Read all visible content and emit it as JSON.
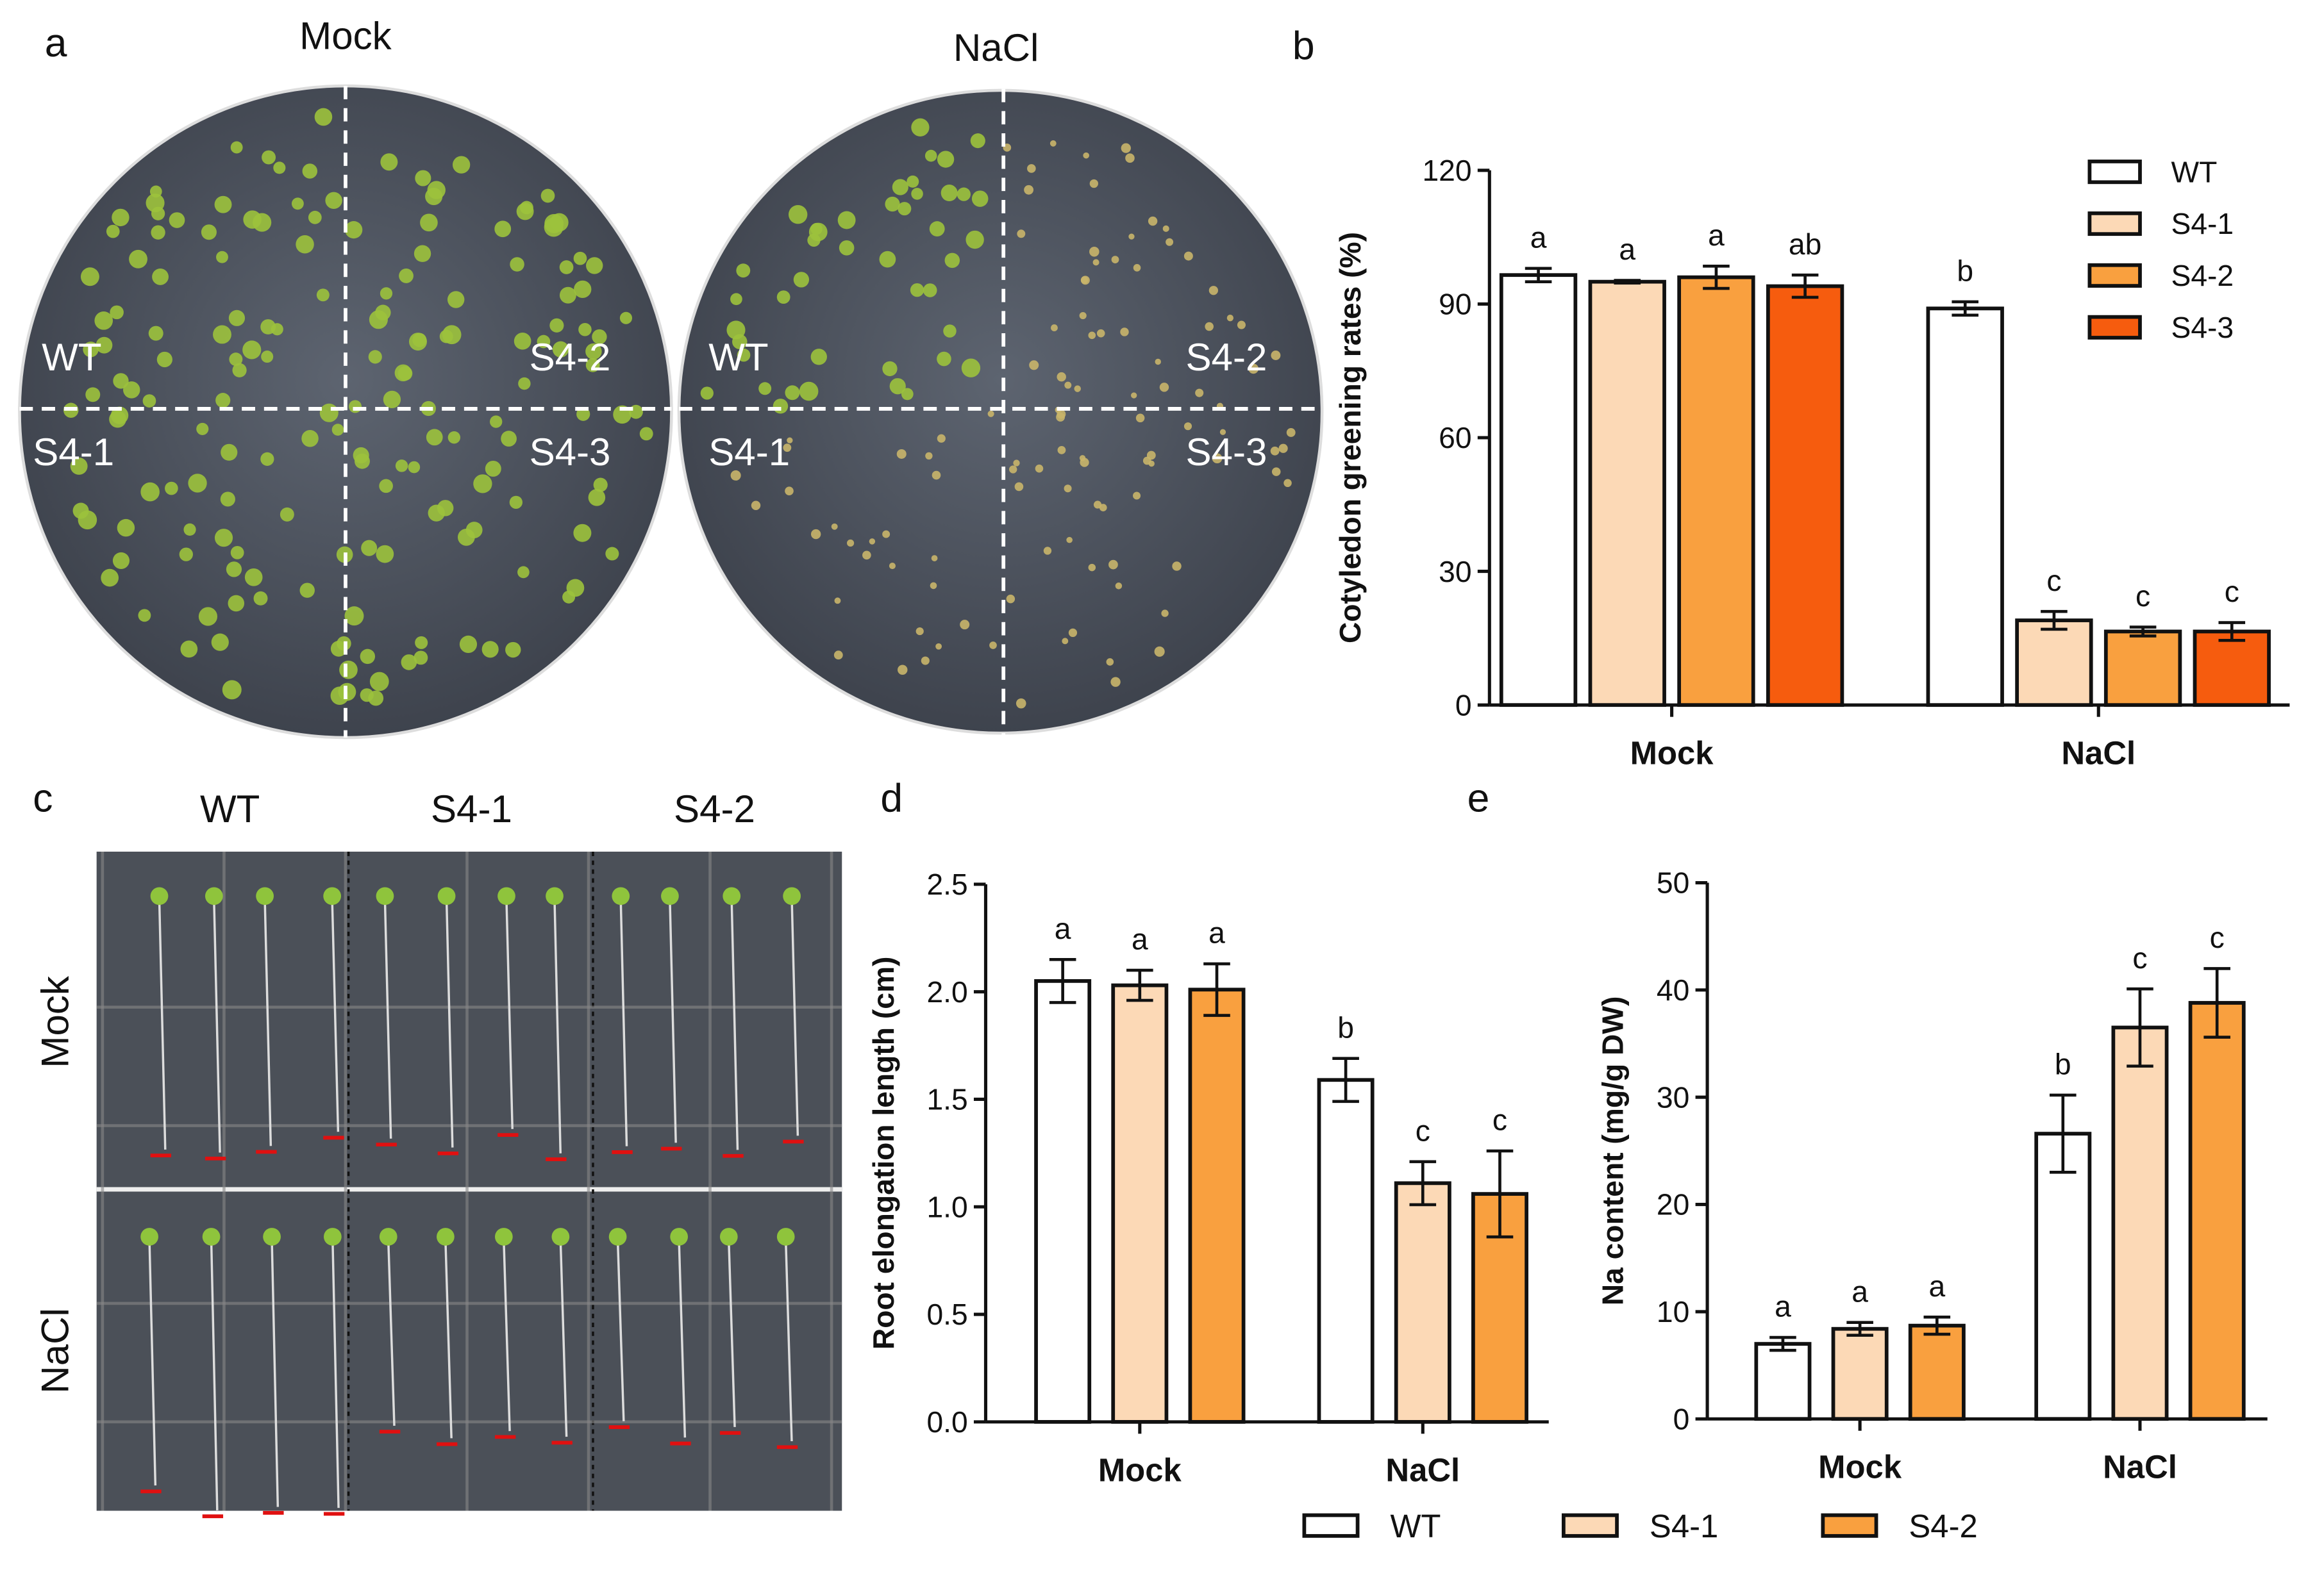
{
  "figure": {
    "panel_labels": [
      "a",
      "b",
      "c",
      "d",
      "e"
    ],
    "plates": [
      {
        "title": "Mock",
        "quadrants": [
          "WT",
          "S4-2",
          "S4-1",
          "S4-3"
        ]
      },
      {
        "title": "NaCl",
        "quadrants": [
          "WT",
          "S4-2",
          "S4-1",
          "S4-3"
        ]
      }
    ],
    "seedlings": {
      "columns": [
        "WT",
        "S4-1",
        "S4-2"
      ],
      "rows": [
        "Mock",
        "NaCl"
      ]
    }
  },
  "chart_data": [
    {
      "type": "bar",
      "y_label": "Cotyledon greening rates (%)",
      "categories": [
        "Mock",
        "NaCl"
      ],
      "ylim": [
        0,
        120
      ],
      "yticks": [
        0,
        30,
        60,
        90,
        120
      ],
      "legend": "top-right",
      "series": [
        {
          "name": "WT",
          "color": "#ffffff",
          "values": [
            96.5,
            89
          ],
          "errors": [
            1.5,
            1.5
          ],
          "letters": [
            "a",
            "b"
          ]
        },
        {
          "name": "S4-1",
          "color": "#fcd9b6",
          "values": [
            95,
            19
          ],
          "errors": [
            0.3,
            2
          ],
          "letters": [
            "a",
            "c"
          ]
        },
        {
          "name": "S4-2",
          "color": "#f9a03f",
          "values": [
            96,
            16.5
          ],
          "errors": [
            2.5,
            1
          ],
          "letters": [
            "a",
            "c"
          ]
        },
        {
          "name": "S4-3",
          "color": "#f65c0e",
          "values": [
            94,
            16.5
          ],
          "errors": [
            2.5,
            2
          ],
          "letters": [
            "ab",
            "c"
          ]
        }
      ]
    },
    {
      "type": "bar",
      "y_label": "Root elongation length (cm)",
      "categories": [
        "Mock",
        "NaCl"
      ],
      "ylim": [
        0,
        2.5
      ],
      "yticks": [
        {
          "value": 0,
          "label": "0.0"
        },
        0.5,
        {
          "value": 1,
          "label": "1.0"
        },
        1.5,
        {
          "value": 2,
          "label": "2.0"
        },
        2.5
      ],
      "series": [
        {
          "color": "#ffffff",
          "values": [
            2.05,
            1.59
          ],
          "errors": [
            0.1,
            0.1
          ],
          "letters": [
            "a",
            "b"
          ]
        },
        {
          "color": "#fcd9b6",
          "values": [
            2.03,
            1.11
          ],
          "errors": [
            0.07,
            0.1
          ],
          "letters": [
            "a",
            "c"
          ]
        },
        {
          "color": "#f9a03f",
          "values": [
            2.01,
            1.06
          ],
          "errors": [
            0.12,
            0.2
          ],
          "letters": [
            "a",
            "c"
          ]
        }
      ]
    },
    {
      "type": "bar",
      "y_label": "Na content (mg/g DW)",
      "categories": [
        "Mock",
        "NaCl"
      ],
      "ylim": [
        0,
        50
      ],
      "yticks": [
        0,
        10,
        20,
        30,
        40,
        50
      ],
      "legend": "bottom",
      "series": [
        {
          "name": "WT",
          "color": "#ffffff",
          "values": [
            7,
            26.6
          ],
          "errors": [
            0.6,
            3.6
          ],
          "letters": [
            "a",
            "b"
          ]
        },
        {
          "name": "S4-1",
          "color": "#fcd9b6",
          "values": [
            8.4,
            36.5
          ],
          "errors": [
            0.6,
            3.6
          ],
          "letters": [
            "a",
            "c"
          ]
        },
        {
          "name": "S4-2",
          "color": "#f9a03f",
          "values": [
            8.7,
            38.8
          ],
          "errors": [
            0.8,
            3.2
          ],
          "letters": [
            "a",
            "c"
          ]
        }
      ]
    }
  ]
}
